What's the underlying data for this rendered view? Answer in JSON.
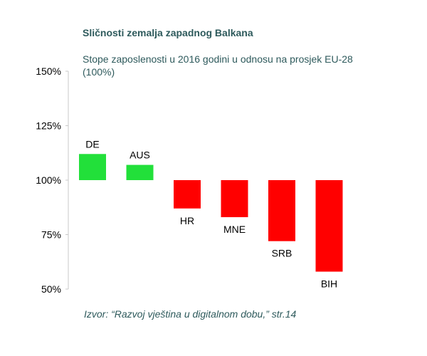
{
  "chart_data": {
    "type": "bar",
    "title": "Sličnosti zemalja zapadnog Balkana",
    "subtitle": "Stope zaposlenosti u 2016 godini u odnosu na prosjek EU-28 (100%)",
    "categories": [
      "DE",
      "AUS",
      "HR",
      "MNE",
      "SRB",
      "BIH"
    ],
    "values": [
      112,
      107,
      87,
      83,
      72,
      58
    ],
    "baseline": 100,
    "ylim": [
      50,
      150
    ],
    "yticks": [
      50,
      75,
      100,
      125,
      150
    ],
    "ytick_labels": [
      "50%",
      "75%",
      "100%",
      "125%",
      "150%"
    ],
    "grid": false,
    "colors": {
      "above": "#22e03a",
      "below": "#ff0000"
    }
  },
  "source": "Izvor: “Razvoj vještina u digitalnom dobu,”  str.14"
}
